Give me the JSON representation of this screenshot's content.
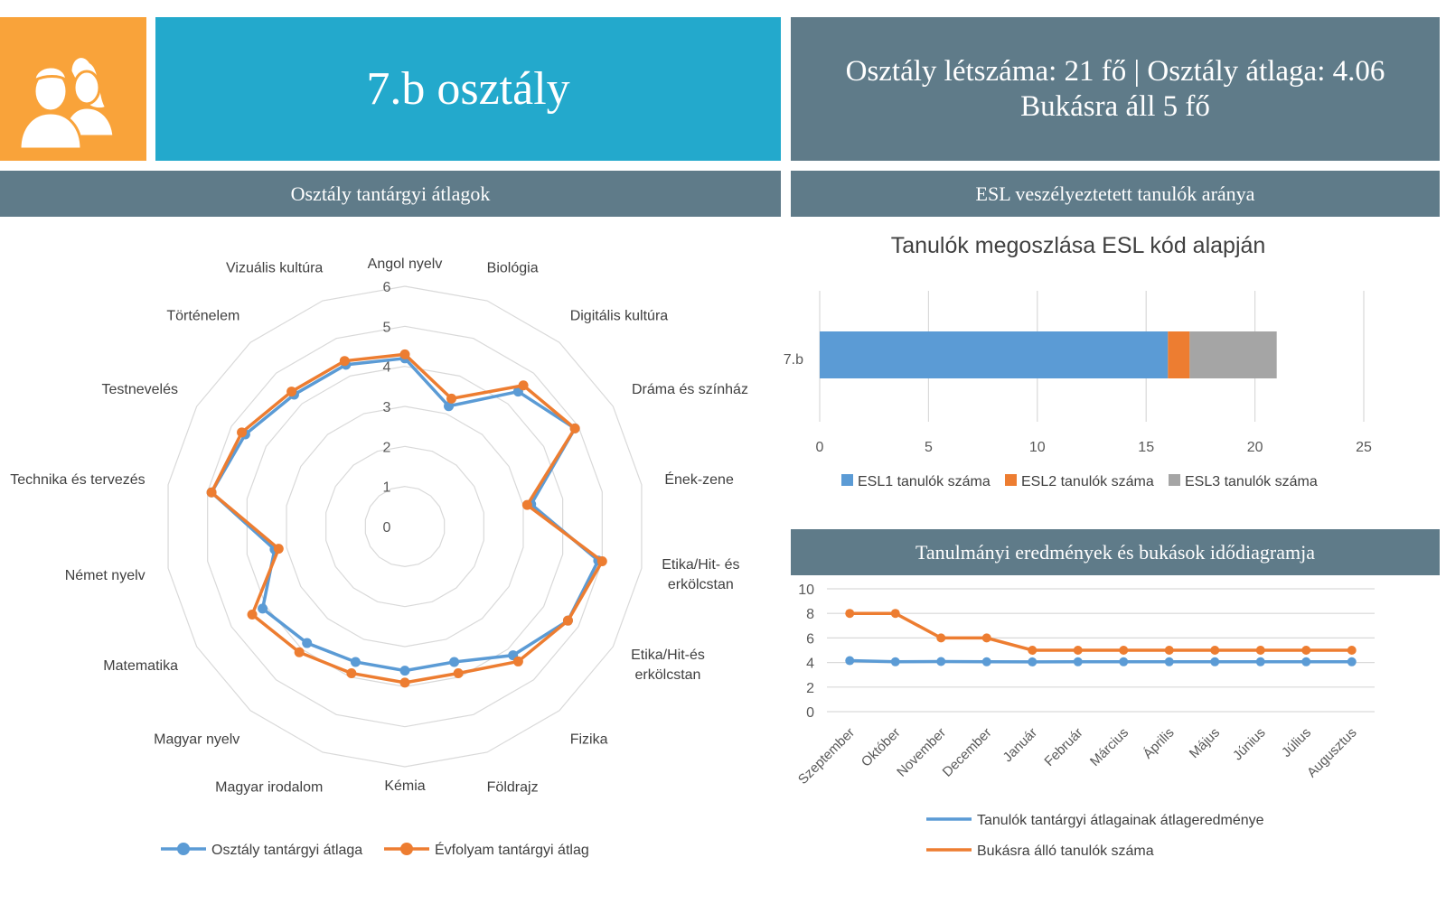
{
  "header": {
    "class_title": "7.b osztály",
    "stats_line1": "Osztály létszáma: 21 fő | Osztály átlaga: 4.06",
    "stats_line2": "Bukásra áll 5 fő"
  },
  "sections": {
    "radar_header": "Osztály tantárgyi átlagok",
    "esl_header": "ESL veszélyeztetett tanulók aránya",
    "time_header": "Tanulmányi eredmények és bukások idődiagramja"
  },
  "colors": {
    "orange_box": "#f9a33a",
    "title_blue": "#23a9cc",
    "slate": "#5f7b89",
    "series_blue": "#5b9bd5",
    "series_orange": "#ed7d31",
    "series_gray": "#a5a5a5"
  },
  "icons": {
    "logo": "people-icon"
  },
  "chart_data": [
    {
      "type": "radar",
      "title": "",
      "categories": [
        "Angol nyelv",
        "Biológia",
        "Digitális kultúra",
        "Dráma és színház",
        "Ének-zene",
        "Etika/Hit- és erkölcstan",
        "Etika/Hit-és erkölcstan",
        "Fizika",
        "Földrajz",
        "Kémia",
        "Magyar irodalom",
        "Magyar nyelv",
        "Matematika",
        "Német nyelv",
        "Technika és tervezés",
        "Testnevelés",
        "Történelem",
        "Vizuális kultúra"
      ],
      "rlim": [
        0,
        6
      ],
      "ticks": [
        0,
        1,
        2,
        3,
        4,
        5,
        6
      ],
      "series": [
        {
          "name": "Osztály tantárgyi átlaga",
          "values": [
            4.2,
            3.2,
            4.4,
            4.9,
            3.2,
            4.9,
            4.7,
            4.2,
            3.6,
            3.6,
            3.6,
            3.8,
            4.1,
            3.3,
            4.9,
            4.6,
            4.3,
            4.3
          ]
        },
        {
          "name": "Évfolyam tantárgyi átlag",
          "values": [
            4.3,
            3.4,
            4.6,
            4.9,
            3.1,
            5.0,
            4.7,
            4.4,
            3.9,
            3.9,
            3.9,
            4.1,
            4.4,
            3.2,
            4.9,
            4.7,
            4.4,
            4.4
          ]
        }
      ]
    },
    {
      "type": "bar",
      "orientation": "horizontal",
      "stacked": true,
      "title": "Tanulók megoszlása ESL kód alapján",
      "categories": [
        "7.b"
      ],
      "xlim": [
        0,
        25
      ],
      "ticks": [
        0,
        5,
        10,
        15,
        20,
        25
      ],
      "series": [
        {
          "name": "ESL1 tanulók száma",
          "values": [
            16
          ]
        },
        {
          "name": "ESL2 tanulók száma",
          "values": [
            1
          ]
        },
        {
          "name": "ESL3 tanulók száma",
          "values": [
            4
          ]
        }
      ]
    },
    {
      "type": "line",
      "title": "",
      "categories": [
        "Szeptember",
        "Október",
        "November",
        "December",
        "Január",
        "Február",
        "Március",
        "Április",
        "Május",
        "Június",
        "Július",
        "Augusztus"
      ],
      "ylim": [
        0,
        10
      ],
      "ticks": [
        0,
        2,
        4,
        6,
        8,
        10
      ],
      "series": [
        {
          "name": "Tanulók tantárgyi átlagainak átlageredménye",
          "values": [
            4.15,
            4.06,
            4.08,
            4.06,
            4.05,
            4.06,
            4.06,
            4.06,
            4.06,
            4.06,
            4.06,
            4.06
          ]
        },
        {
          "name": "Bukásra álló tanulók száma",
          "values": [
            8,
            8,
            6,
            6,
            5,
            5,
            5,
            5,
            5,
            5,
            5,
            5
          ]
        }
      ]
    }
  ]
}
